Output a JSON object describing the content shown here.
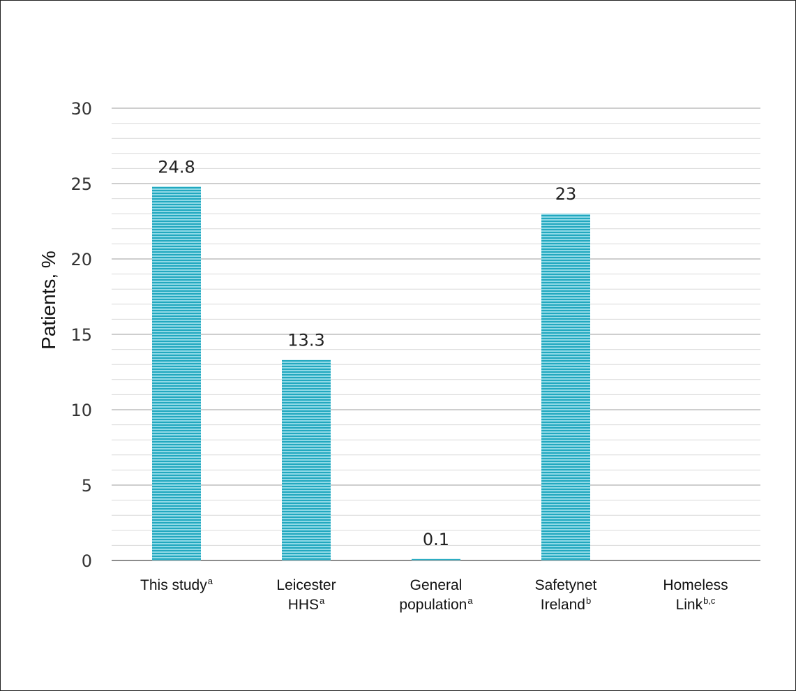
{
  "chart_data": {
    "type": "bar",
    "title": "",
    "xlabel": "",
    "ylabel": "Patients, %",
    "ylim": [
      0,
      30
    ],
    "yticks": [
      "0",
      "5",
      "10",
      "15",
      "20",
      "25",
      "30"
    ],
    "grid": true,
    "categories": [
      {
        "lines": [
          "This study"
        ],
        "sup": "a"
      },
      {
        "lines": [
          "Leicester",
          "HHS"
        ],
        "sup": "a"
      },
      {
        "lines": [
          "General",
          "population"
        ],
        "sup": "a"
      },
      {
        "lines": [
          "Safetynet",
          "Ireland"
        ],
        "sup": "b"
      },
      {
        "lines": [
          "Homeless",
          "Link"
        ],
        "sup": "b,c"
      }
    ],
    "values": [
      24.8,
      13.3,
      0.1,
      23,
      null
    ],
    "data_labels": [
      "24.8",
      "13.3",
      "0.1",
      "23",
      ""
    ],
    "bar_color": "#2fb3c9"
  }
}
